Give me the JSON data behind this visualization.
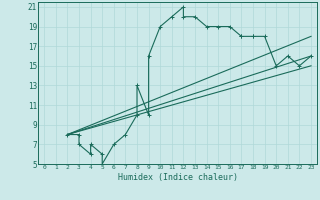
{
  "xlabel": "Humidex (Indice chaleur)",
  "bg_color": "#cce9e9",
  "grid_color": "#b0d8d8",
  "line_color": "#1a6b5a",
  "xlim": [
    -0.5,
    23.5
  ],
  "ylim": [
    5,
    21.5
  ],
  "xticks": [
    0,
    1,
    2,
    3,
    4,
    5,
    6,
    7,
    8,
    9,
    10,
    11,
    12,
    13,
    14,
    15,
    16,
    17,
    18,
    19,
    20,
    21,
    22,
    23
  ],
  "yticks": [
    5,
    7,
    9,
    11,
    13,
    15,
    17,
    19,
    21
  ],
  "main_curve_x": [
    2,
    3,
    3,
    4,
    4,
    5,
    5,
    6,
    7,
    8,
    8,
    9,
    9,
    10,
    11,
    12,
    12,
    13,
    14,
    15,
    16,
    17,
    17,
    18,
    18,
    19,
    20,
    21,
    22,
    23
  ],
  "main_curve_y": [
    8,
    8,
    7,
    6,
    7,
    6,
    5,
    7,
    8,
    10,
    13,
    10,
    16,
    19,
    20,
    21,
    20,
    20,
    19,
    19,
    19,
    18,
    18,
    18,
    18,
    18,
    15,
    16,
    15,
    16
  ],
  "line1_x": [
    2,
    23
  ],
  "line1_y": [
    8,
    16
  ],
  "line2_x": [
    2,
    23
  ],
  "line2_y": [
    8,
    15
  ],
  "line3_x": [
    2,
    23
  ],
  "line3_y": [
    8,
    18
  ]
}
